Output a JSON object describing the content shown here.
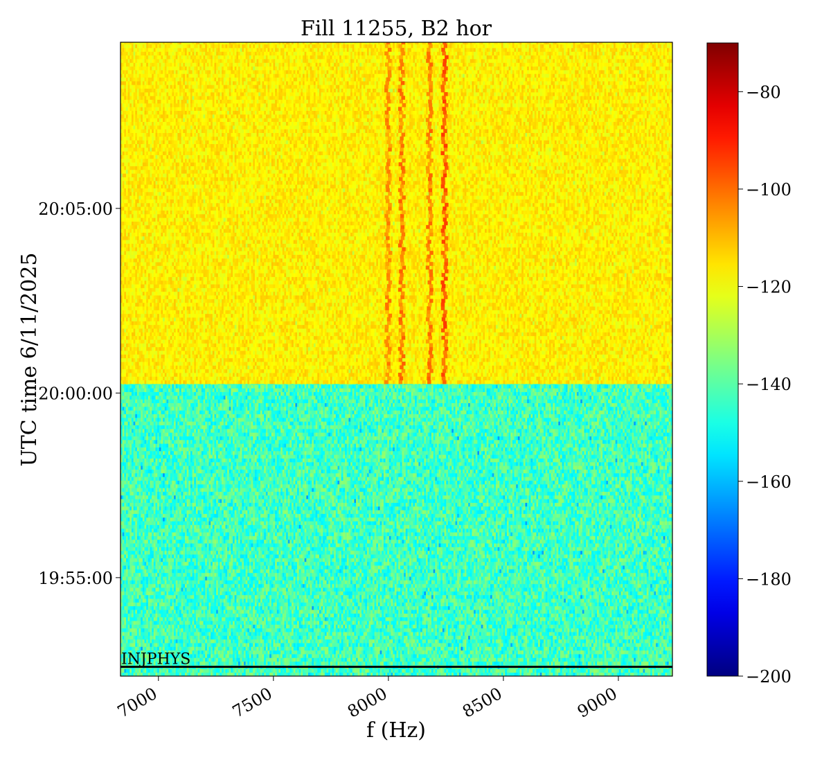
{
  "chart_data": {
    "type": "heatmap",
    "title": "Fill 11255, B2 hor",
    "xlabel": "f (Hz)",
    "ylabel": "UTC time 6/11/2025",
    "xlim": [
      6835,
      9235
    ],
    "ylim": [
      "19:52:20",
      "20:09:30"
    ],
    "x_ticks": [
      7000,
      7500,
      8000,
      8500,
      9000
    ],
    "x_tick_labels": [
      "7000",
      "7500",
      "8000",
      "8500",
      "9000"
    ],
    "y_ticks": [
      "19:55:00",
      "20:00:00",
      "20:05:00"
    ],
    "colorbar": {
      "colormap": "jet",
      "vmin": -200,
      "vmax": -70,
      "ticks": [
        -80,
        -100,
        -120,
        -140,
        -160,
        -180,
        -200
      ],
      "tick_labels": [
        "−80",
        "−100",
        "−120",
        "−140",
        "−160",
        "−180",
        "−200"
      ]
    },
    "regions": [
      {
        "from": "19:52:20",
        "to": "20:00:15",
        "typical_level": -143,
        "noise_range": [
          -165,
          -125
        ]
      },
      {
        "from": "20:00:15",
        "to": "20:09:30",
        "typical_level": -117,
        "noise_range": [
          -128,
          -108
        ]
      }
    ],
    "lines": [
      {
        "f": 8000,
        "from": "20:00:15",
        "to": "20:09:30",
        "level": -105
      },
      {
        "f": 8060,
        "from": "20:00:15",
        "to": "20:09:30",
        "level": -103
      },
      {
        "f": 8180,
        "from": "20:00:15",
        "to": "20:09:30",
        "level": -103
      },
      {
        "f": 8245,
        "from": "20:00:15",
        "to": "20:09:30",
        "level": -98
      }
    ],
    "annotation": {
      "text": "INJPHYS",
      "time": "19:52:35"
    }
  }
}
